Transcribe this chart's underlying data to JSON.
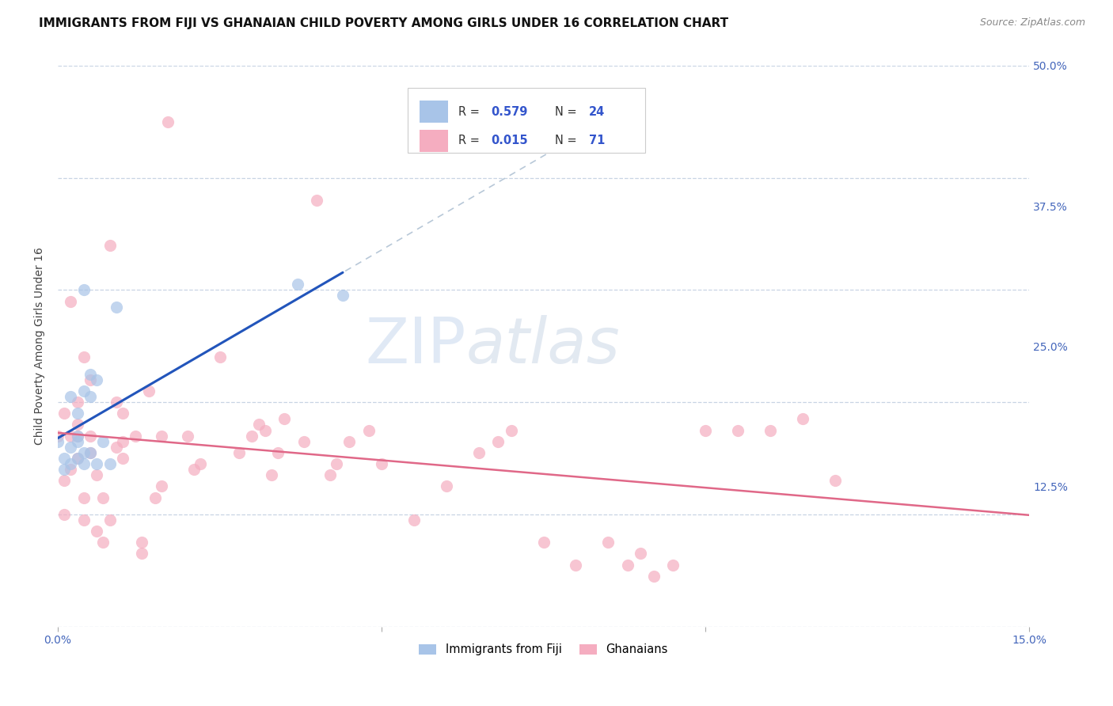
{
  "title": "IMMIGRANTS FROM FIJI VS GHANAIAN CHILD POVERTY AMONG GIRLS UNDER 16 CORRELATION CHART",
  "source": "Source: ZipAtlas.com",
  "ylabel": "Child Poverty Among Girls Under 16",
  "xlim": [
    0.0,
    0.15
  ],
  "ylim": [
    0.0,
    0.5
  ],
  "xtick_vals": [
    0.0,
    0.05,
    0.1,
    0.15
  ],
  "xtick_labels": [
    "0.0%",
    "",
    "",
    "15.0%"
  ],
  "ytick_vals": [
    0.0,
    0.125,
    0.25,
    0.375,
    0.5
  ],
  "ytick_labels_right": [
    "",
    "12.5%",
    "25.0%",
    "37.5%",
    "50.0%"
  ],
  "fiji_R": 0.579,
  "fiji_N": 24,
  "ghana_R": 0.015,
  "ghana_N": 71,
  "fiji_color": "#a8c4e8",
  "ghana_color": "#f5adc0",
  "fiji_line_color": "#2255bb",
  "ghana_line_color": "#e06888",
  "ref_line_color": "#b8c8d8",
  "watermark_zip": "ZIP",
  "watermark_atlas": "atlas",
  "fiji_x": [
    0.0,
    0.001,
    0.001,
    0.002,
    0.002,
    0.002,
    0.003,
    0.003,
    0.003,
    0.003,
    0.004,
    0.004,
    0.004,
    0.004,
    0.005,
    0.005,
    0.005,
    0.006,
    0.006,
    0.007,
    0.008,
    0.009,
    0.037,
    0.044
  ],
  "fiji_y": [
    0.165,
    0.14,
    0.15,
    0.145,
    0.16,
    0.205,
    0.15,
    0.165,
    0.17,
    0.19,
    0.145,
    0.155,
    0.21,
    0.3,
    0.155,
    0.205,
    0.225,
    0.145,
    0.22,
    0.165,
    0.145,
    0.285,
    0.305,
    0.295
  ],
  "ghana_x": [
    0.0,
    0.001,
    0.001,
    0.001,
    0.002,
    0.002,
    0.002,
    0.003,
    0.003,
    0.003,
    0.003,
    0.004,
    0.004,
    0.004,
    0.005,
    0.005,
    0.005,
    0.006,
    0.006,
    0.007,
    0.007,
    0.008,
    0.008,
    0.009,
    0.009,
    0.01,
    0.01,
    0.01,
    0.012,
    0.013,
    0.013,
    0.014,
    0.015,
    0.016,
    0.016,
    0.017,
    0.02,
    0.021,
    0.022,
    0.025,
    0.028,
    0.03,
    0.031,
    0.032,
    0.033,
    0.034,
    0.035,
    0.038,
    0.04,
    0.042,
    0.043,
    0.045,
    0.048,
    0.05,
    0.055,
    0.06,
    0.065,
    0.068,
    0.07,
    0.075,
    0.08,
    0.085,
    0.088,
    0.09,
    0.092,
    0.095,
    0.1,
    0.105,
    0.11,
    0.115,
    0.12
  ],
  "ghana_y": [
    0.17,
    0.1,
    0.13,
    0.19,
    0.14,
    0.17,
    0.29,
    0.15,
    0.17,
    0.18,
    0.2,
    0.095,
    0.115,
    0.24,
    0.155,
    0.17,
    0.22,
    0.085,
    0.135,
    0.075,
    0.115,
    0.095,
    0.34,
    0.16,
    0.2,
    0.15,
    0.165,
    0.19,
    0.17,
    0.065,
    0.075,
    0.21,
    0.115,
    0.125,
    0.17,
    0.45,
    0.17,
    0.14,
    0.145,
    0.24,
    0.155,
    0.17,
    0.18,
    0.175,
    0.135,
    0.155,
    0.185,
    0.165,
    0.38,
    0.135,
    0.145,
    0.165,
    0.175,
    0.145,
    0.095,
    0.125,
    0.155,
    0.165,
    0.175,
    0.075,
    0.055,
    0.075,
    0.055,
    0.065,
    0.045,
    0.055,
    0.175,
    0.175,
    0.175,
    0.185,
    0.13
  ],
  "background_color": "#ffffff",
  "grid_color": "#c8d4e4",
  "title_fontsize": 11,
  "axis_label_fontsize": 10,
  "tick_fontsize": 10,
  "source_fontsize": 9
}
